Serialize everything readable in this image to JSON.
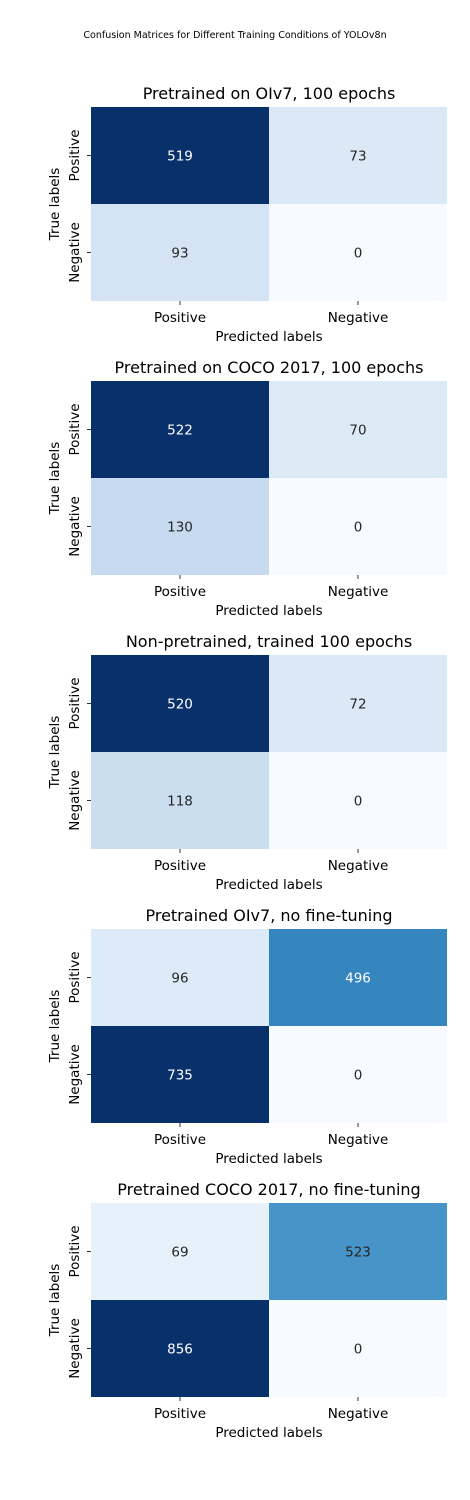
{
  "suptitle": "Confusion Matrices for Different Training Conditions of YOLOv8n",
  "chart_data": [
    {
      "type": "heatmap",
      "title": "Pretrained on OIv7, 100 epochs",
      "xlabel": "Predicted labels",
      "ylabel": "True labels",
      "x_categories": [
        "Positive",
        "Negative"
      ],
      "y_categories": [
        "Positive",
        "Negative"
      ],
      "values": [
        [
          519,
          73
        ],
        [
          93,
          0
        ]
      ],
      "colormap": "Blues",
      "colorbar": false
    },
    {
      "type": "heatmap",
      "title": "Pretrained on COCO 2017, 100 epochs",
      "xlabel": "Predicted labels",
      "ylabel": "True labels",
      "x_categories": [
        "Positive",
        "Negative"
      ],
      "y_categories": [
        "Positive",
        "Negative"
      ],
      "values": [
        [
          522,
          70
        ],
        [
          130,
          0
        ]
      ],
      "colormap": "Blues",
      "colorbar": false
    },
    {
      "type": "heatmap",
      "title": "Non-pretrained, trained 100 epochs",
      "xlabel": "Predicted labels",
      "ylabel": "True labels",
      "x_categories": [
        "Positive",
        "Negative"
      ],
      "y_categories": [
        "Positive",
        "Negative"
      ],
      "values": [
        [
          520,
          72
        ],
        [
          118,
          0
        ]
      ],
      "colormap": "Blues",
      "colorbar": false
    },
    {
      "type": "heatmap",
      "title": "Pretrained OIv7, no fine-tuning",
      "xlabel": "Predicted labels",
      "ylabel": "True labels",
      "x_categories": [
        "Positive",
        "Negative"
      ],
      "y_categories": [
        "Positive",
        "Negative"
      ],
      "values": [
        [
          96,
          496
        ],
        [
          735,
          0
        ]
      ],
      "colormap": "Blues",
      "colorbar": false
    },
    {
      "type": "heatmap",
      "title": "Pretrained COCO 2017, no fine-tuning",
      "xlabel": "Predicted labels",
      "ylabel": "True labels",
      "x_categories": [
        "Positive",
        "Negative"
      ],
      "y_categories": [
        "Positive",
        "Negative"
      ],
      "values": [
        [
          69,
          523
        ],
        [
          856,
          0
        ]
      ],
      "colormap": "Blues",
      "colorbar": false
    }
  ]
}
